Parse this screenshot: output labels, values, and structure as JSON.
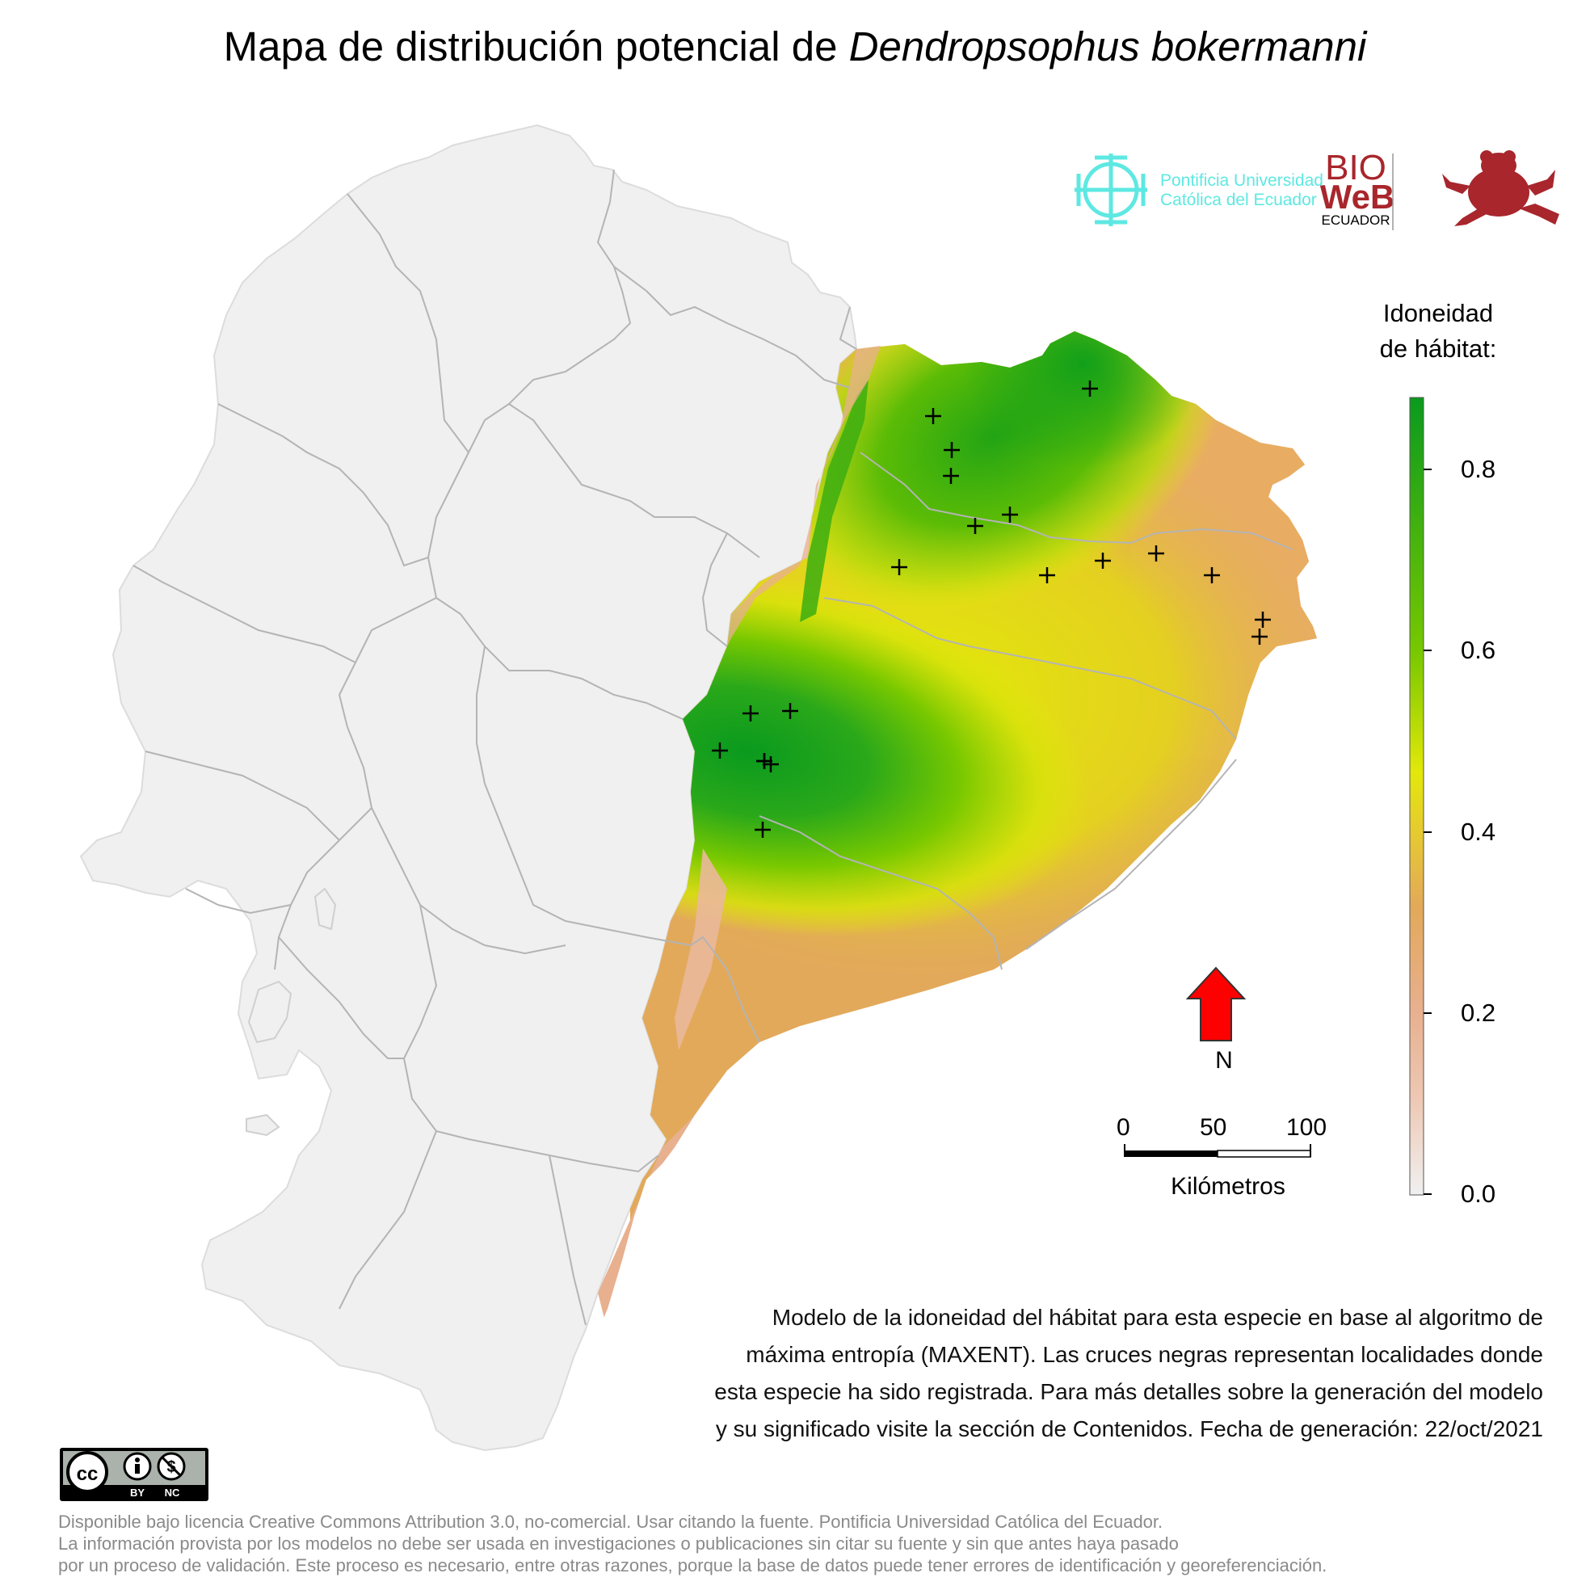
{
  "title": {
    "prefix": "Mapa de distribución potencial de ",
    "species": "Dendropsophus bokermanni"
  },
  "logos": {
    "puce_line1": "Pontificia Universidad",
    "puce_line2": "Católica del Ecuador",
    "bioweb_word1": "BIO",
    "bioweb_word2": "WeB",
    "bioweb_word3": "ECUADOR",
    "puce_color": "#5ee8e2",
    "bioweb_color": "#a8262c"
  },
  "legend": {
    "title_line1": "Idoneidad",
    "title_line2": "de hábitat:",
    "ticks": [
      "0.8",
      "0.6",
      "0.4",
      "0.2",
      "0.0"
    ],
    "tick_values": [
      0.8,
      0.6,
      0.4,
      0.2,
      0.0
    ],
    "max_value": 0.88,
    "colors": [
      "#f0f0f0",
      "#e8b08f",
      "#e2a95a",
      "#e6cc2e",
      "#e2e80a",
      "#78c800",
      "#0a9a1e"
    ]
  },
  "north_arrow": {
    "label": "N",
    "color": "#ff0000"
  },
  "scale_bar": {
    "labels": [
      "0",
      "50",
      "100"
    ],
    "unit": "Kilómetros"
  },
  "description": {
    "line1": "Modelo de la idoneidad del hábitat para esta especie en base al algoritmo de",
    "line2": "máxima entropía (MAXENT). Las cruces negras representan localidades donde",
    "line3": "esta especie ha sido registrada. Para más detalles sobre la generación del modelo",
    "line4": "y su significado visite la sección de Contenidos. Fecha de generación: 22/oct/2021"
  },
  "license": {
    "badge_by": "BY",
    "badge_nc": "NC",
    "line1": "Disponible bajo licencia Creative Commons Attribution 3.0, no-comercial. Usar citando la fuente. Pontificia Universidad Católica del Ecuador.",
    "line2": "La información provista por los modelos no debe ser usada en investigaciones o publicaciones sin citar su fuente y sin que antes haya pasado",
    "line3": "por un proceso de validación. Este proceso es necesario, entre otras razones, porque la base de datos puede tener errores de identificación y georeferenciación."
  },
  "map_style": {
    "land_color": "#f0f0f0",
    "border_color": "#b4b4b4",
    "record_marker": "+"
  }
}
